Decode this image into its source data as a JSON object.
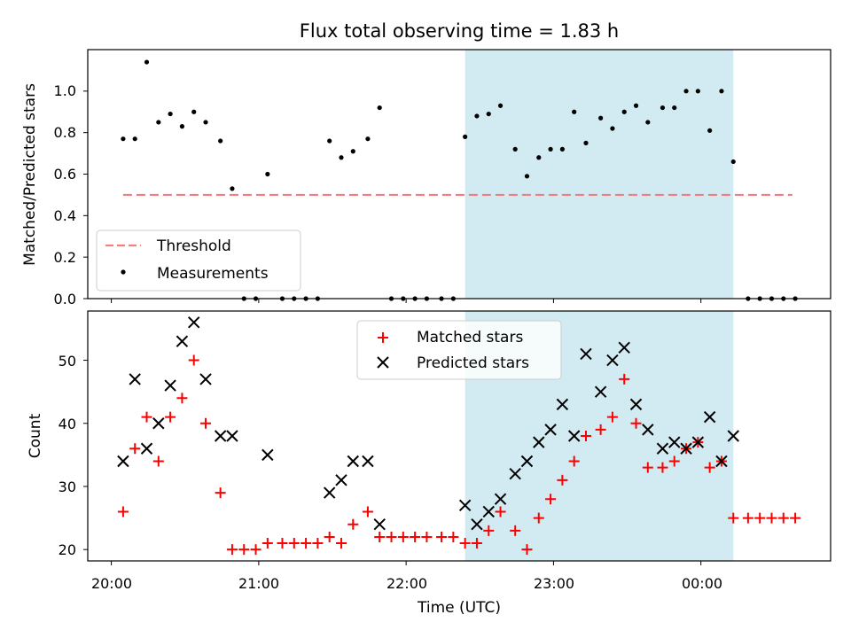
{
  "title": "Flux total observing time = 1.83 h",
  "xlabel": "Time (UTC)",
  "x_tick_labels": [
    "20:00",
    "21:00",
    "22:00",
    "23:00",
    "00:00"
  ],
  "top_panel": {
    "ylabel": "Matched/Predicted stars",
    "y_tick_labels": [
      "0.0",
      "0.2",
      "0.4",
      "0.6",
      "0.8",
      "1.0"
    ],
    "legend": [
      "Threshold",
      "Measurements"
    ]
  },
  "bottom_panel": {
    "ylabel": "Count",
    "y_tick_labels": [
      "20",
      "30",
      "40",
      "50"
    ],
    "legend": [
      "Matched stars",
      "Predicted stars"
    ]
  },
  "chart_data": [
    {
      "type": "scatter",
      "panel": "top",
      "x_unit": "hours since 20:00 UTC",
      "xlim": [
        -0.16,
        4.88
      ],
      "ylim": [
        0,
        1.2
      ],
      "y_ticks": [
        0,
        0.2,
        0.4,
        0.6,
        0.8,
        1.0
      ],
      "x_ticks": [
        0,
        1,
        2,
        3,
        4
      ],
      "shaded_span": {
        "x": [
          2.4,
          4.22
        ],
        "color": "#add8e6"
      },
      "threshold": {
        "name": "Threshold",
        "y": 0.5,
        "x": [
          0.08,
          4.62
        ],
        "color": "#f08080",
        "style": "dashed"
      },
      "series": [
        {
          "name": "Measurements",
          "color": "#000000",
          "x": [
            0.08,
            0.16,
            0.24,
            0.32,
            0.4,
            0.48,
            0.56,
            0.64,
            0.74,
            0.82,
            0.9,
            0.98,
            1.06,
            1.16,
            1.24,
            1.32,
            1.4,
            1.48,
            1.56,
            1.64,
            1.74,
            1.82,
            1.9,
            1.98,
            2.06,
            2.14,
            2.24,
            2.32,
            2.4,
            2.48,
            2.56,
            2.64,
            2.74,
            2.82,
            2.9,
            2.98,
            3.06,
            3.14,
            3.22,
            3.32,
            3.4,
            3.48,
            3.56,
            3.64,
            3.74,
            3.82,
            3.9,
            3.98,
            4.06,
            4.14,
            4.22,
            4.32,
            4.4,
            4.48,
            4.56,
            4.64
          ],
          "y": [
            0.77,
            0.77,
            1.14,
            0.85,
            0.89,
            0.83,
            0.9,
            0.85,
            0.76,
            0.53,
            0,
            0,
            0.6,
            0,
            0,
            0,
            0,
            0.76,
            0.68,
            0.71,
            0.77,
            0.92,
            0,
            0,
            0,
            0,
            0,
            0,
            0.78,
            0.88,
            0.89,
            0.93,
            0.72,
            0.59,
            0.68,
            0.72,
            0.72,
            0.9,
            0.75,
            0.87,
            0.82,
            0.9,
            0.93,
            0.85,
            0.92,
            0.92,
            1.0,
            1.0,
            0.81,
            1.0,
            0.66,
            0,
            0,
            0,
            0,
            0
          ]
        }
      ]
    },
    {
      "type": "scatter",
      "panel": "bottom",
      "x_unit": "hours since 20:00 UTC",
      "xlim": [
        -0.16,
        4.88
      ],
      "ylim": [
        18.2,
        57.8
      ],
      "y_ticks": [
        20,
        30,
        40,
        50
      ],
      "x_ticks": [
        0,
        1,
        2,
        3,
        4
      ],
      "shaded_span": {
        "x": [
          2.4,
          4.22
        ],
        "color": "#add8e6"
      },
      "series": [
        {
          "name": "Matched stars",
          "marker": "plus",
          "color": "#ff0000",
          "x": [
            0.08,
            0.16,
            0.24,
            0.32,
            0.4,
            0.48,
            0.56,
            0.64,
            0.74,
            0.82,
            0.9,
            0.98,
            1.06,
            1.16,
            1.24,
            1.32,
            1.4,
            1.48,
            1.56,
            1.64,
            1.74,
            1.82,
            1.9,
            1.98,
            2.06,
            2.14,
            2.24,
            2.32,
            2.4,
            2.48,
            2.56,
            2.64,
            2.74,
            2.82,
            2.9,
            2.98,
            3.06,
            3.14,
            3.22,
            3.32,
            3.4,
            3.48,
            3.56,
            3.64,
            3.74,
            3.82,
            3.9,
            3.98,
            4.06,
            4.14,
            4.22,
            4.32,
            4.4,
            4.48,
            4.56,
            4.64
          ],
          "y": [
            26,
            36,
            41,
            34,
            41,
            44,
            50,
            40,
            29,
            20,
            20,
            20,
            21,
            21,
            21,
            21,
            21,
            22,
            21,
            24,
            26,
            22,
            22,
            22,
            22,
            22,
            22,
            22,
            21,
            21,
            23,
            26,
            23,
            20,
            25,
            28,
            31,
            34,
            38,
            39,
            41,
            47,
            40,
            33,
            33,
            34,
            36,
            37,
            33,
            34,
            25,
            25,
            25,
            25,
            25,
            25
          ]
        },
        {
          "name": "Predicted stars",
          "marker": "x",
          "color": "#000000",
          "x": [
            0.08,
            0.16,
            0.24,
            0.32,
            0.4,
            0.48,
            0.56,
            0.64,
            0.74,
            0.82,
            1.06,
            1.48,
            1.56,
            1.64,
            1.74,
            1.82,
            2.4,
            2.48,
            2.56,
            2.64,
            2.74,
            2.82,
            2.9,
            2.98,
            3.06,
            3.14,
            3.22,
            3.32,
            3.4,
            3.48,
            3.56,
            3.64,
            3.74,
            3.82,
            3.9,
            3.98,
            4.06,
            4.14,
            4.22
          ],
          "y": [
            34,
            47,
            36,
            40,
            46,
            53,
            56,
            47,
            38,
            38,
            35,
            29,
            31,
            34,
            34,
            24,
            27,
            24,
            26,
            28,
            32,
            34,
            37,
            39,
            43,
            38,
            51,
            45,
            50,
            52,
            43,
            39,
            36,
            37,
            36,
            37,
            41,
            34,
            38
          ]
        }
      ]
    }
  ]
}
